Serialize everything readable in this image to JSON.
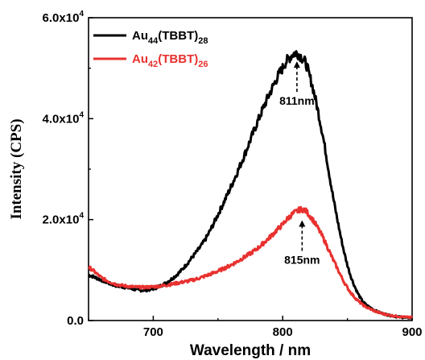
{
  "chart_data": {
    "type": "line",
    "title": "",
    "xlabel": "Wavelength / nm",
    "ylabel": "Intensity (CPS)",
    "xlim": [
      650,
      900
    ],
    "ylim": [
      0,
      60000
    ],
    "x_ticks": [
      {
        "value": 700,
        "label": "700"
      },
      {
        "value": 800,
        "label": "800"
      },
      {
        "value": 900,
        "label": "900"
      }
    ],
    "y_ticks": [
      {
        "value": 0,
        "mant": "0.0",
        "exp": ""
      },
      {
        "value": 20000,
        "mant": "2.0x10",
        "exp": "4"
      },
      {
        "value": 40000,
        "mant": "4.0x10",
        "exp": "4"
      },
      {
        "value": 60000,
        "mant": "6.0x10",
        "exp": "4"
      }
    ],
    "grid": false,
    "legend_position": "top-left",
    "series": [
      {
        "label_base": "Au",
        "label_sub1": "44",
        "label_mid": "(TBBT)",
        "label_sub2": "28",
        "color": "#000000",
        "x": [
          650,
          660,
          670,
          680,
          690,
          700,
          710,
          720,
          730,
          740,
          750,
          760,
          770,
          780,
          790,
          800,
          805,
          810,
          815,
          820,
          830,
          840,
          850,
          860,
          870,
          880,
          890,
          900
        ],
        "y": [
          9000,
          8000,
          7000,
          6500,
          6000,
          6300,
          7500,
          9500,
          12500,
          16000,
          21000,
          26500,
          32500,
          39000,
          45000,
          50000,
          52000,
          53000,
          52000,
          49000,
          38000,
          23000,
          11000,
          4500,
          2200,
          1200,
          700,
          500
        ]
      },
      {
        "label_base": "Au",
        "label_sub1": "42",
        "label_mid": "(TBBT)",
        "label_sub2": "26",
        "color": "#e8312f",
        "x": [
          650,
          660,
          670,
          680,
          690,
          700,
          710,
          720,
          730,
          740,
          750,
          760,
          770,
          780,
          790,
          800,
          805,
          810,
          815,
          820,
          830,
          840,
          850,
          860,
          870,
          880,
          890,
          900
        ],
        "y": [
          10500,
          8500,
          7300,
          6800,
          6600,
          6700,
          7000,
          7500,
          8000,
          8800,
          9800,
          11000,
          12500,
          14200,
          16500,
          19000,
          20500,
          21500,
          22000,
          21000,
          17000,
          11500,
          6500,
          3500,
          2000,
          1200,
          800,
          600
        ]
      }
    ],
    "annotations": [
      {
        "text": "811nm",
        "x": 811,
        "y_head": 52000
      },
      {
        "text": "815nm",
        "x": 815,
        "y_head": 20500
      }
    ]
  }
}
